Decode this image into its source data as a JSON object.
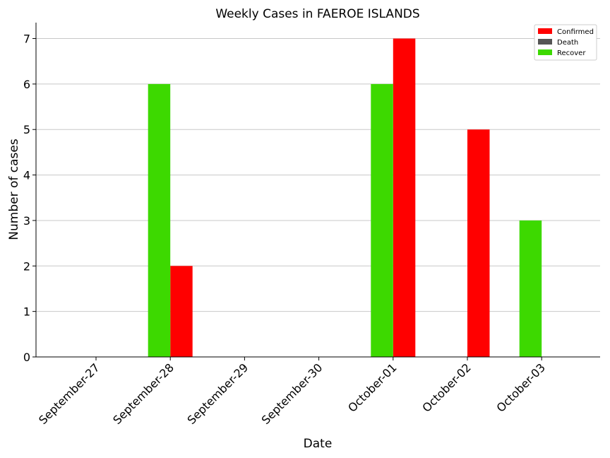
{
  "chart_data": {
    "type": "bar",
    "title": "Weekly Cases in FAEROE ISLANDS",
    "xlabel": "Date",
    "ylabel": "Number of cases",
    "categories": [
      "September-27",
      "September-28",
      "September-29",
      "September-30",
      "October-01",
      "October-02",
      "October-03"
    ],
    "series": [
      {
        "name": "Confirmed",
        "color": "#ff0000",
        "values": [
          0,
          2,
          0,
          0,
          7,
          5,
          0
        ]
      },
      {
        "name": "Death",
        "color": "#555555",
        "values": [
          0,
          0,
          0,
          0,
          0,
          0,
          0
        ]
      },
      {
        "name": "Recover",
        "color": "#3dd900",
        "values": [
          0,
          6,
          0,
          0,
          6,
          0,
          3
        ]
      }
    ],
    "yticks": [
      0,
      1,
      2,
      3,
      4,
      5,
      6,
      7
    ],
    "ylim": [
      0,
      7.35
    ],
    "grid": "y",
    "legend_position": "top-right"
  }
}
